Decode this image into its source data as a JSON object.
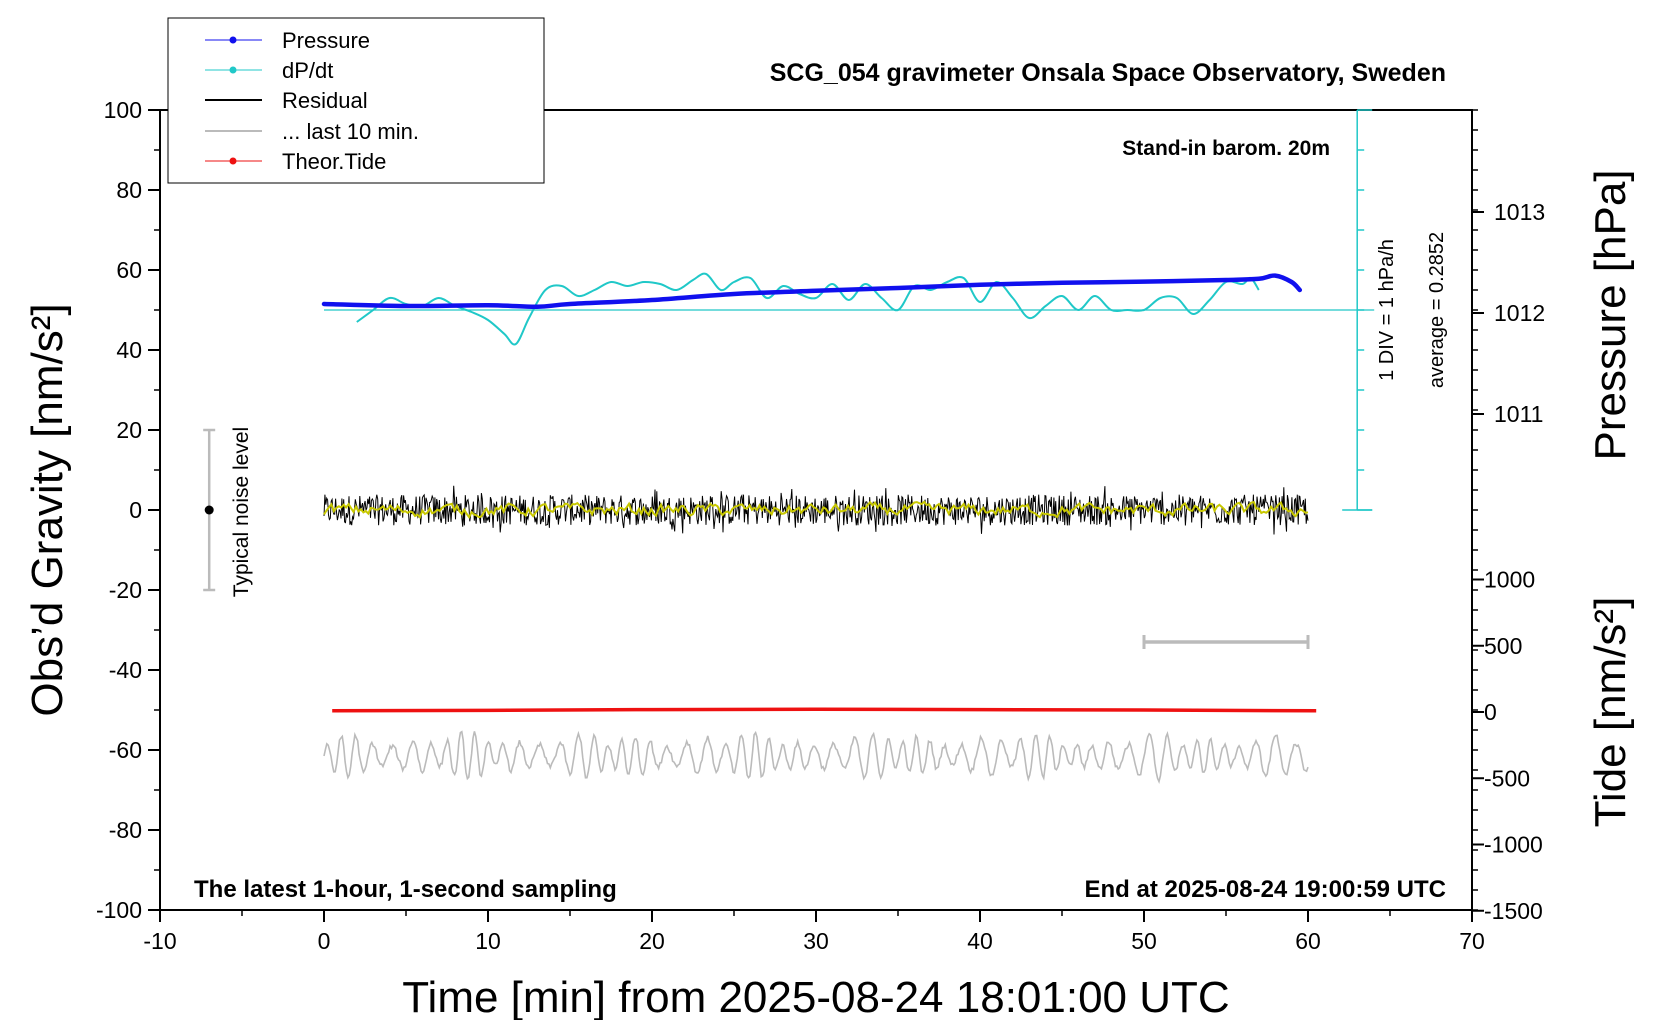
{
  "chart_data": {
    "type": "line",
    "title": "SCG_054 gravimeter Onsala Space Observatory, Sweden",
    "xlabel": "Time [min] from 2025-08-24 18:01:00 UTC",
    "ylabel_left": "Obs’d Gravity [nm/s²]",
    "ylabel_right_pressure": "Pressure [hPa]",
    "ylabel_right_tide": "Tide [nm/s²]",
    "xlim": [
      -10,
      70
    ],
    "ylim_left": [
      -100,
      100
    ],
    "x_ticks": [
      "-10",
      "0",
      "10",
      "20",
      "30",
      "40",
      "50",
      "60",
      "70"
    ],
    "y_ticks_left": [
      "100",
      "80",
      "60",
      "40",
      "20",
      "0",
      "-20",
      "-40",
      "-60",
      "-80",
      "-100"
    ],
    "pressure_ticks": [
      "1013",
      "1012",
      "1011"
    ],
    "tide_ticks": [
      "1000",
      "500",
      "0",
      "-500",
      "-1000",
      "-1500"
    ],
    "notes": {
      "barometer": "Stand-in barom. 20m",
      "latest": "The latest 1-hour, 1-second sampling",
      "end": "End at 2025-08-24 19:00:59 UTC",
      "noise": "Typical noise level",
      "div": "1 DIV = 1 hPa/h",
      "average": "average = 0.2852"
    },
    "legend": [
      {
        "label": "Pressure",
        "color": "#1010ee",
        "marker": true
      },
      {
        "label": "dP/dt",
        "color": "#20c8c8",
        "marker": true
      },
      {
        "label": "Residual",
        "color": "#000000",
        "marker": false
      },
      {
        "label": "... last 10 min.",
        "color": "#bbbbbb",
        "marker": false
      },
      {
        "label": "Theor.Tide",
        "color": "#ee1111",
        "marker": true
      }
    ],
    "series": [
      {
        "name": "Pressure",
        "color": "#1010ee",
        "x": [
          0,
          5,
          10,
          13,
          15,
          20,
          25,
          30,
          35,
          40,
          45,
          50,
          55,
          57,
          58,
          59,
          59.5
        ],
        "y": [
          51.5,
          51,
          51.2,
          50.8,
          51.5,
          52.5,
          54,
          54.8,
          55.5,
          56.3,
          56.8,
          57.1,
          57.5,
          57.8,
          58.6,
          57,
          55
        ]
      },
      {
        "name": "dP/dt",
        "color": "#20c8c8",
        "x": [
          2,
          3,
          4,
          5,
          6,
          7,
          8,
          9,
          10,
          11,
          11.7,
          12.5,
          13.5,
          14.5,
          15.5,
          16.5,
          17.5,
          18.5,
          19.5,
          20.5,
          21.5,
          22.5,
          23.3,
          24.2,
          25,
          26,
          27,
          28,
          29,
          30,
          31,
          32,
          33,
          34,
          35,
          36,
          37,
          38,
          39,
          40,
          41,
          42,
          43,
          44,
          45,
          46,
          47,
          48,
          49,
          50,
          51,
          52,
          53,
          54,
          55,
          56,
          56.5,
          57
        ],
        "y": [
          47,
          50,
          53,
          51.5,
          51,
          53,
          51,
          49.5,
          47.5,
          44,
          41.5,
          48,
          55,
          56,
          53.5,
          55,
          57,
          56,
          57,
          56.5,
          55,
          57.5,
          59,
          55,
          57,
          58,
          53,
          56,
          54,
          53,
          56.5,
          52.5,
          56.5,
          53,
          50,
          56,
          55,
          57,
          58,
          52,
          57,
          53,
          48,
          51,
          53.5,
          50,
          53.5,
          50,
          50,
          50,
          53,
          53,
          49,
          52.5,
          57,
          56.5,
          58,
          55
        ]
      },
      {
        "name": "Residual",
        "color": "#000000",
        "x_range": [
          0,
          60
        ],
        "y_center": 0,
        "amplitude": 7
      },
      {
        "name": "Residual smoothed",
        "color": "#c8c800",
        "x_range": [
          0,
          60
        ],
        "y_center": 0,
        "amplitude": 1.5
      },
      {
        "name": "... last 10 min.",
        "color": "#bbbbbb",
        "x_range": [
          0,
          60
        ],
        "y_center": -61.5,
        "amplitude": 6
      },
      {
        "name": "Theor.Tide",
        "color": "#ee1111",
        "x": [
          0.5,
          10,
          20,
          30,
          40,
          50,
          60.5
        ],
        "y": [
          -50.2,
          -50.1,
          -49.9,
          -49.8,
          -49.9,
          -50.0,
          -50.2
        ]
      }
    ],
    "scale_bar_x": [
      50,
      60
    ],
    "scale_bar_y": -33,
    "noise_bar_x": -7,
    "noise_bar_y": [
      -20,
      20
    ],
    "pressure_avg_line_y": 50,
    "cyan_axis_x": 63,
    "cyan_axis_y": [
      0,
      100
    ]
  }
}
